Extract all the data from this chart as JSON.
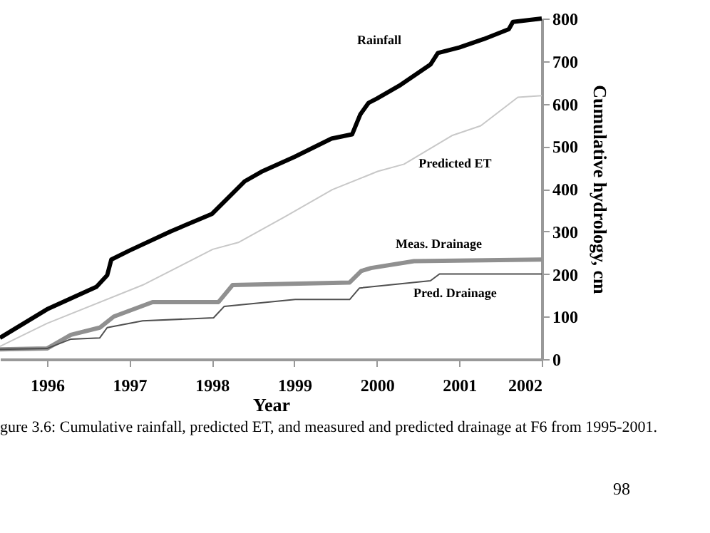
{
  "chart_data": {
    "type": "line",
    "xlabel": "Year",
    "ylabel": "Cumulative hydrology, cm",
    "xlim": [
      1995.43,
      2002
    ],
    "xticks": [
      1996,
      1997,
      1998,
      1999,
      2000,
      2001,
      2002
    ],
    "ylim": [
      0,
      800
    ],
    "yticks": [
      0,
      100,
      200,
      300,
      400,
      500,
      600,
      700,
      800
    ],
    "grid": false,
    "marker": "none",
    "line_style": "solid",
    "series": [
      {
        "name": "Rainfall",
        "color": "#000000",
        "x": [
          1995.43,
          1996,
          1996.6,
          1996.73,
          1996.78,
          1997,
          1997.5,
          1998,
          1998.4,
          1998.6,
          1999,
          1999.45,
          1999.7,
          1999.8,
          1999.9,
          2000,
          2000.27,
          2000.65,
          2000.74,
          2001,
          2001.3,
          2001.6,
          2001.65,
          2002
        ],
        "values": [
          50,
          117,
          170,
          197,
          234,
          255,
          300,
          341,
          418,
          440,
          475,
          518,
          528,
          575,
          602,
          612,
          642,
          692,
          719,
          732,
          752,
          775,
          792,
          800
        ]
      },
      {
        "name": "Predicted ET",
        "color": "#c8c8c8",
        "x": [
          1995.43,
          1996,
          1997.16,
          1998.01,
          1998.32,
          1998.89,
          1999.46,
          2000.01,
          2000.33,
          2000.91,
          2001.26,
          2001.71,
          2002
        ],
        "values": [
          30,
          84,
          174,
          258,
          274,
          335,
          398,
          441,
          458,
          525,
          548,
          615,
          619
        ]
      },
      {
        "name": "Meas. Drainage",
        "color": "#909090",
        "x": [
          1995.43,
          1996,
          1996.29,
          1996.64,
          1996.81,
          1997.28,
          1998.08,
          1998.25,
          1999.67,
          1999.81,
          1999.93,
          2000.45,
          2002
        ],
        "values": [
          23,
          25,
          57,
          74,
          100,
          134,
          134,
          174,
          180,
          207,
          214,
          230,
          234
        ]
      },
      {
        "name": "Pred. Drainage",
        "color": "#505050",
        "x": [
          1995.43,
          1996,
          1996.29,
          1996.64,
          1996.73,
          1997.16,
          1998.02,
          1998.15,
          1999.01,
          1999.67,
          1999.79,
          2000.65,
          2000.76,
          2002
        ],
        "values": [
          23,
          25,
          47,
          50,
          74,
          90,
          97,
          124,
          140,
          140,
          167,
          184,
          200,
          200
        ]
      }
    ],
    "annotations": [
      "gure 3.6: Cumulative rainfall, predicted ET, and measured and predicted drainage at F6 from 1995-2001.",
      "98"
    ]
  }
}
